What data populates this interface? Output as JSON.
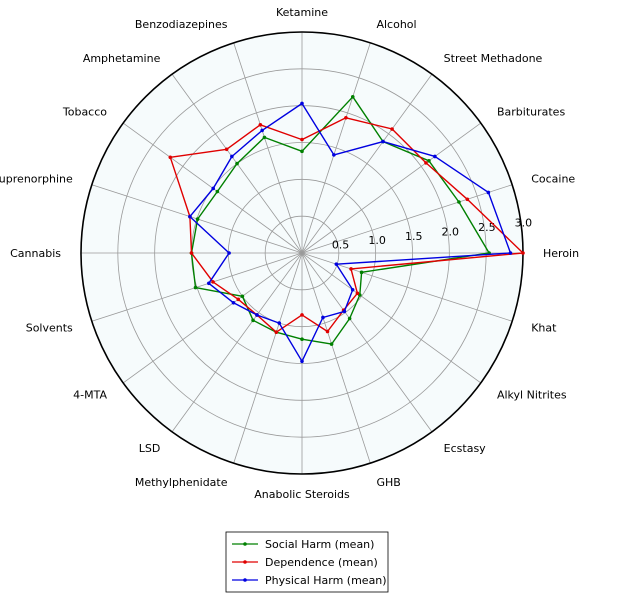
{
  "chart_data": {
    "type": "radar",
    "categories": [
      "Heroin",
      "Cocaine",
      "Barbiturates",
      "Street Methadone",
      "Alcohol",
      "Ketamine",
      "Benzodiazepines",
      "Amphetamine",
      "Tobacco",
      "Buprenorphine",
      "Cannabis",
      "Solvents",
      "4-MTA",
      "LSD",
      "Methylphenidate",
      "Anabolic Steroids",
      "GHB",
      "Ecstasy",
      "Alkyl Nitrites",
      "Khat"
    ],
    "rlim": [
      0,
      3.0
    ],
    "rticks": [
      "0.5",
      "1.0",
      "1.5",
      "2.0",
      "2.5",
      "3.0"
    ],
    "grid": true,
    "legend_position": "bottom",
    "series": [
      {
        "name": "Social Harm (mean)",
        "color": "#008000",
        "values": [
          2.54,
          2.24,
          2.13,
          1.87,
          2.23,
          1.38,
          1.65,
          1.5,
          1.42,
          1.49,
          1.5,
          1.52,
          1.0,
          1.13,
          1.13,
          1.17,
          1.3,
          1.1,
          0.97,
          0.85
        ]
      },
      {
        "name": "Dependence (mean)",
        "color": "#e00000",
        "values": [
          3.0,
          2.36,
          2.08,
          2.08,
          1.93,
          1.54,
          1.83,
          1.74,
          2.21,
          1.6,
          1.5,
          1.27,
          1.07,
          1.04,
          1.13,
          0.84,
          1.12,
          0.96,
          0.93,
          0.7
        ]
      },
      {
        "name": "Physical Harm (mean)",
        "color": "#0000e0",
        "values": [
          2.83,
          2.66,
          2.23,
          1.87,
          1.4,
          2.03,
          1.75,
          1.62,
          1.49,
          1.6,
          0.99,
          1.33,
          1.15,
          1.04,
          1.0,
          1.47,
          0.92,
          0.98,
          0.85,
          0.49
        ]
      }
    ]
  }
}
